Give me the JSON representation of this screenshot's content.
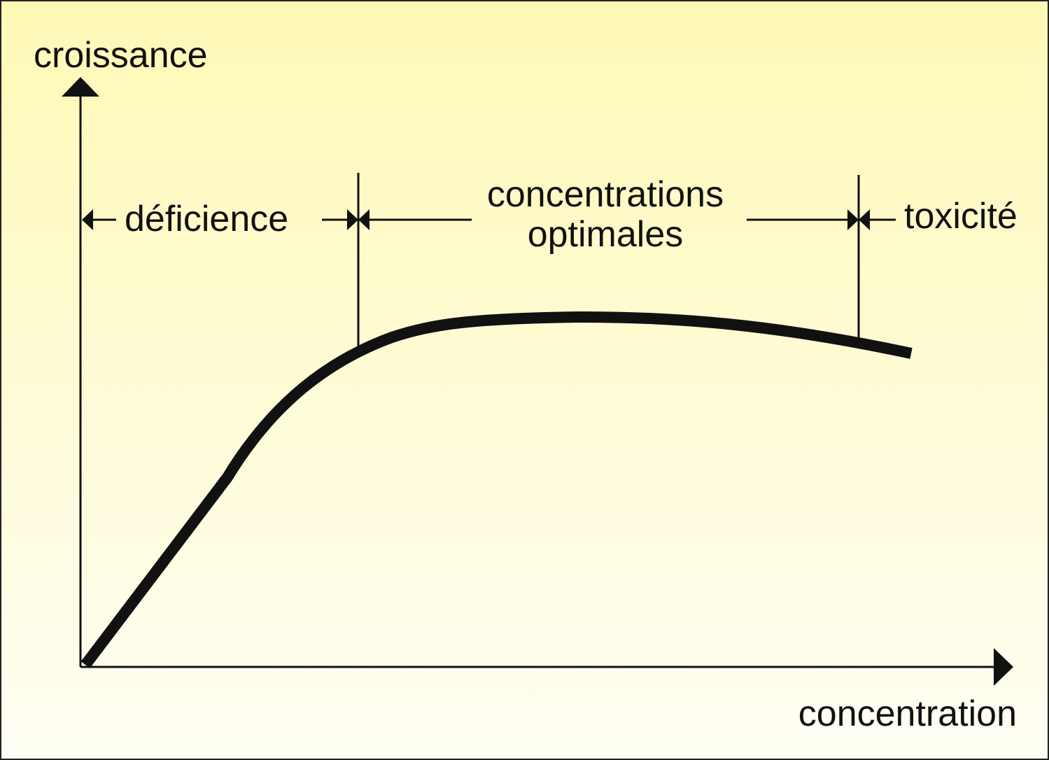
{
  "axes": {
    "y_label": "croissance",
    "x_label": "concentration"
  },
  "zones": [
    {
      "label_lines": [
        "déficience"
      ]
    },
    {
      "label_lines": [
        "concentrations",
        "optimales"
      ]
    },
    {
      "label_lines": [
        "toxicité"
      ]
    }
  ]
}
